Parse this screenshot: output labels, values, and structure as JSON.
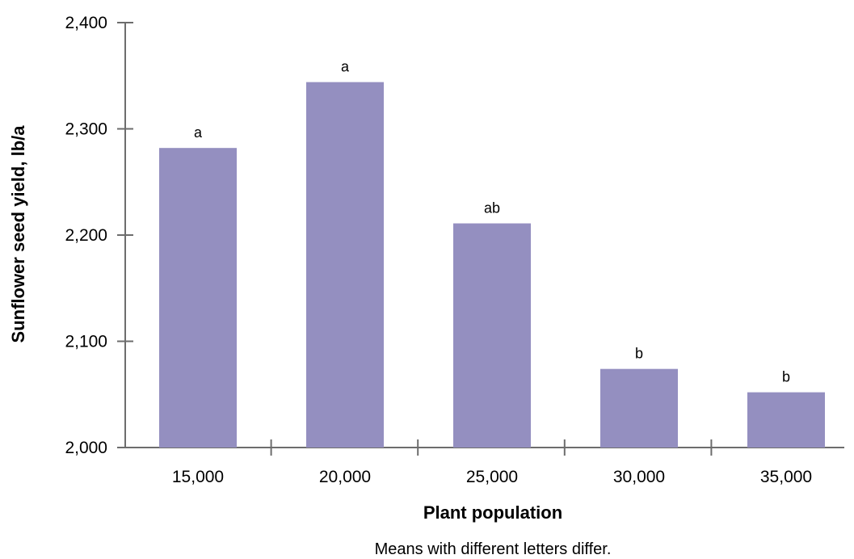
{
  "chart_data": {
    "type": "bar",
    "title": "",
    "xlabel": "Plant population",
    "ylabel": "Sunflower seed yield, lb/a",
    "note": "Means with different letters differ.",
    "categories": [
      "15,000",
      "20,000",
      "25,000",
      "30,000",
      "35,000"
    ],
    "values": [
      2282,
      2344,
      2211,
      2074,
      2052
    ],
    "labels": [
      "a",
      "a",
      "ab",
      "b",
      "b"
    ],
    "ylim": [
      2000,
      2400
    ],
    "yticks": [
      2000,
      2100,
      2200,
      2300,
      2400
    ],
    "ytick_labels": [
      "2,000",
      "2,100",
      "2,200",
      "2,300",
      "2,400"
    ],
    "grid": false,
    "legend": "none",
    "colors": {
      "bar": "#948fc0",
      "axis": "#6d6d6d"
    }
  }
}
